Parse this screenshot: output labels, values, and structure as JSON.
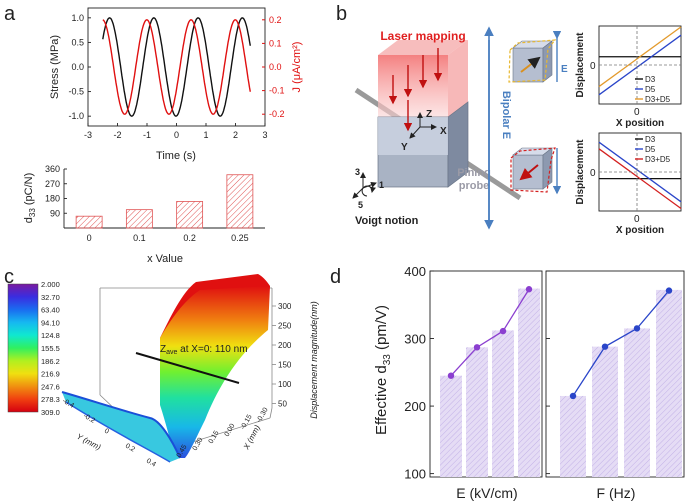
{
  "panels": {
    "a": {
      "letter": "a"
    },
    "b": {
      "letter": "b"
    },
    "c": {
      "letter": "c"
    },
    "d": {
      "letter": "d"
    }
  },
  "colors": {
    "stress": "#111111",
    "current": "#e01010",
    "hatch_red": "#e05555",
    "purple": "#8b3fd0",
    "blue": "#2a45c9",
    "bar_fill": "#ddd2f2"
  },
  "chart_data": [
    {
      "id": "a-top",
      "type": "line",
      "xlabel": "Time (s)",
      "ylabel": "Stress (MPa)",
      "y2label": "J (μA/cm²)",
      "xlim": [
        -3,
        3
      ],
      "ylim": [
        -1.2,
        1.2
      ],
      "y2lim": [
        -0.25,
        0.25
      ],
      "xticks": [
        "-3",
        "-2",
        "-1",
        "0",
        "1",
        "2",
        "3"
      ],
      "yticks": [
        "1.0",
        "0.5",
        "0.0",
        "-0.5",
        "-1.0"
      ],
      "y2ticks": [
        "0.2",
        "0.1",
        "0.0",
        "-0.1",
        "-0.2"
      ],
      "series": [
        {
          "axis": "left",
          "color": "#111111",
          "x": [
            -2.5,
            -2.25,
            -2.0,
            -1.75,
            -1.5,
            -1.25,
            -1.0,
            -0.75,
            -0.5,
            -0.25,
            0.0,
            0.25,
            0.5,
            0.75,
            1.0,
            1.25,
            1.5,
            1.75,
            2.0,
            2.25,
            2.5
          ],
          "y": [
            0.55,
            1.0,
            0.55,
            -0.55,
            -1.0,
            -0.55,
            0.55,
            1.0,
            0.55,
            -0.55,
            -1.0,
            -0.55,
            0.55,
            1.0,
            0.55,
            -0.55,
            -1.0,
            -0.55,
            0.55,
            1.0,
            0.55
          ]
        },
        {
          "axis": "right",
          "color": "#e01010",
          "x": [
            -2.5,
            -2.25,
            -2.0,
            -1.75,
            -1.5,
            -1.25,
            -1.0,
            -0.75,
            -0.5,
            -0.25,
            0.0,
            0.25,
            0.5,
            0.75,
            1.0,
            1.25,
            1.5,
            1.75,
            2.0,
            2.25,
            2.5
          ],
          "y": [
            0.2,
            0.09,
            -0.13,
            -0.2,
            -0.09,
            0.13,
            0.2,
            0.09,
            -0.13,
            -0.2,
            -0.09,
            0.13,
            0.2,
            0.09,
            -0.13,
            -0.2,
            -0.09,
            0.13,
            0.2,
            0.09,
            -0.13
          ]
        }
      ]
    },
    {
      "id": "a-bottom",
      "type": "bar",
      "xlabel": "x Value",
      "ylabel": "d33 (pC/N)",
      "categories": [
        "0",
        "0.1",
        "0.2",
        "0.25"
      ],
      "values": [
        72,
        112,
        162,
        325
      ],
      "ylim": [
        0,
        360
      ],
      "yticks": [
        "360",
        "270",
        "180",
        "90"
      ]
    },
    {
      "id": "b-top-inset",
      "type": "line",
      "xlabel": "X position",
      "ylabel": "Displacement",
      "series": [
        {
          "name": "D3",
          "color": "#111111",
          "x": [
            -1,
            1
          ],
          "y": [
            0.25,
            0.25
          ]
        },
        {
          "name": "D5",
          "color": "#2a45c9",
          "x": [
            -1,
            1
          ],
          "y": [
            -0.9,
            0.9
          ]
        },
        {
          "name": "D3+D5",
          "color": "#e39a2c",
          "x": [
            -1,
            1
          ],
          "y": [
            -0.65,
            1.15
          ]
        }
      ]
    },
    {
      "id": "b-bottom-inset",
      "type": "line",
      "xlabel": "X position",
      "ylabel": "Displacement",
      "series": [
        {
          "name": "D3",
          "color": "#111111",
          "x": [
            -1,
            1
          ],
          "y": [
            -0.2,
            -0.2
          ]
        },
        {
          "name": "D5",
          "color": "#2a45c9",
          "x": [
            -1,
            1
          ],
          "y": [
            0.9,
            -0.9
          ]
        },
        {
          "name": "D3+D5",
          "color": "#d42020",
          "x": [
            -1,
            1
          ],
          "y": [
            0.7,
            -1.1
          ]
        }
      ]
    },
    {
      "id": "c",
      "type": "heatmap",
      "colorbar_ticks": [
        "2.000",
        "32.70",
        "63.40",
        "94.10",
        "124.8",
        "155.5",
        "186.2",
        "216.9",
        "247.6",
        "278.3",
        "309.0"
      ],
      "colorbar_colors": [
        "#7a1aa0",
        "#3a2de0",
        "#1a6cf0",
        "#16b8f0",
        "#10e8d0",
        "#30f060",
        "#b0f020",
        "#f0e010",
        "#f09010",
        "#f04010",
        "#d40010"
      ],
      "zlabel": "Displacement magnitude(nm)",
      "zticks": [
        "300",
        "250",
        "200",
        "150",
        "100",
        "50"
      ],
      "xlabel": "X (mm)",
      "ylabel": "Y (mm)",
      "xticks": [
        "0.45",
        "0.30",
        "0.15",
        "0.00",
        "-0.15",
        "-0.30"
      ],
      "yticks": [
        "-0.4",
        "-0.2",
        "0",
        "0.2",
        "0.4"
      ],
      "annotation": "Z",
      "annotation_sub": "ave",
      "annotation_rest": " at X=0: 110 nm"
    },
    {
      "id": "d",
      "type": "bar",
      "ylabel": "Effective d",
      "ylabel_sub": "33",
      "ylabel_unit": " (pm/V)",
      "ylim": [
        100,
        400
      ],
      "yticks": [
        "400",
        "300",
        "200",
        "100"
      ],
      "panels": [
        {
          "xlabel": "E (kV/cm)",
          "color": "#8b3fd0",
          "bars": [
            245,
            287,
            312,
            374
          ],
          "points": [
            245,
            287,
            311,
            373
          ]
        },
        {
          "xlabel": "F (Hz)",
          "color": "#2a45c9",
          "bars": [
            215,
            288,
            315,
            372
          ],
          "points": [
            215,
            288,
            315,
            371
          ]
        }
      ]
    }
  ],
  "diagram": {
    "laser_label": "Laser mapping",
    "bipolar_label": "Bipolar E",
    "pining_label": "Pining\nprobe",
    "e_label": "E",
    "voigt_label": "Voigt notion",
    "axis_z": "Z",
    "axis_x": "X",
    "axis_y": "Y",
    "voigt_1": "1",
    "voigt_3": "3",
    "voigt_5": "5",
    "zero": "0"
  }
}
